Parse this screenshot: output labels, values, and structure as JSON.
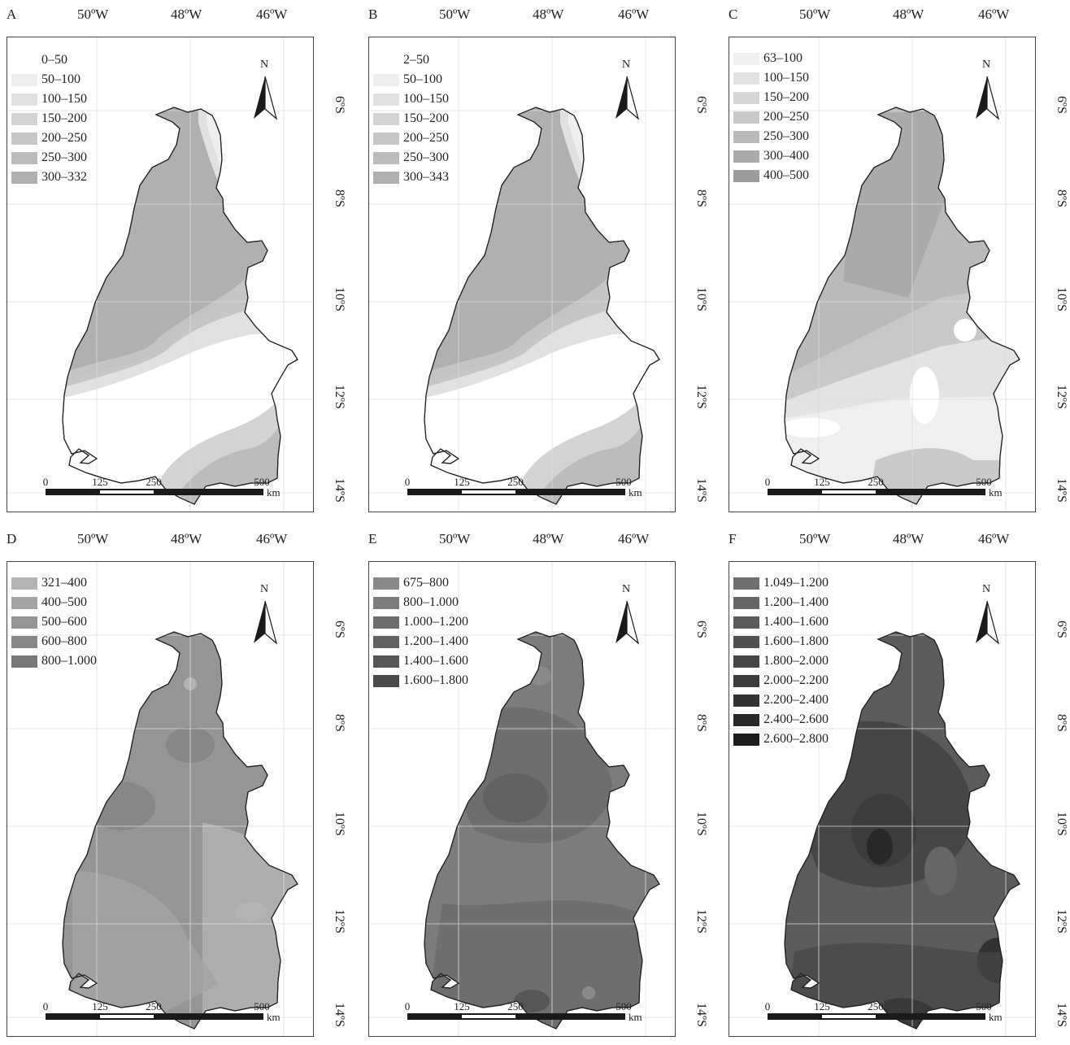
{
  "longitudes": [
    "50ºW",
    "48ºW",
    "46ºW"
  ],
  "latitudes": [
    "6ºS",
    "8ºS",
    "10ºS",
    "12ºS",
    "14ºS"
  ],
  "north_label": "N",
  "scale": {
    "ticks": [
      "0",
      "125",
      "250",
      "500"
    ],
    "unit": "km"
  },
  "panels": [
    {
      "letter": "A",
      "legend": [
        {
          "label": "0–50",
          "color": "#ffffff"
        },
        {
          "label": "50–100",
          "color": "#eeeeee"
        },
        {
          "label": "100–150",
          "color": "#e1e1e1"
        },
        {
          "label": "150–200",
          "color": "#d3d3d3"
        },
        {
          "label": "200–250",
          "color": "#c7c7c7"
        },
        {
          "label": "250–300",
          "color": "#bcbcbc"
        },
        {
          "label": "300–332",
          "color": "#b0b0b0"
        }
      ]
    },
    {
      "letter": "B",
      "legend": [
        {
          "label": "2–50",
          "color": "#ffffff"
        },
        {
          "label": "50–100",
          "color": "#eeeeee"
        },
        {
          "label": "100–150",
          "color": "#e1e1e1"
        },
        {
          "label": "150–200",
          "color": "#d3d3d3"
        },
        {
          "label": "200–250",
          "color": "#c7c7c7"
        },
        {
          "label": "250–300",
          "color": "#bcbcbc"
        },
        {
          "label": "300–343",
          "color": "#b0b0b0"
        }
      ]
    },
    {
      "letter": "C",
      "legend": [
        {
          "label": "63–100",
          "color": "#efefef"
        },
        {
          "label": "100–150",
          "color": "#e3e3e3"
        },
        {
          "label": "150–200",
          "color": "#d6d6d6"
        },
        {
          "label": "200–250",
          "color": "#c9c9c9"
        },
        {
          "label": "250–300",
          "color": "#bababa"
        },
        {
          "label": "300–400",
          "color": "#aaaaaa"
        },
        {
          "label": "400–500",
          "color": "#9b9b9b"
        }
      ]
    },
    {
      "letter": "D",
      "legend": [
        {
          "label": "321–400",
          "color": "#b3b3b3"
        },
        {
          "label": "400–500",
          "color": "#a4a4a4"
        },
        {
          "label": "500–600",
          "color": "#959595"
        },
        {
          "label": "600–800",
          "color": "#878787"
        },
        {
          "label": "800–1.000",
          "color": "#787878"
        }
      ]
    },
    {
      "letter": "E",
      "legend": [
        {
          "label": "675–800",
          "color": "#8a8a8a"
        },
        {
          "label": "800–1.000",
          "color": "#7c7c7c"
        },
        {
          "label": "1.000–1.200",
          "color": "#6e6e6e"
        },
        {
          "label": "1.200–1.400",
          "color": "#626262"
        },
        {
          "label": "1.400–1.600",
          "color": "#565656"
        },
        {
          "label": "1.600–1.800",
          "color": "#4a4a4a"
        }
      ]
    },
    {
      "letter": "F",
      "legend": [
        {
          "label": "1.049–1.200",
          "color": "#707070"
        },
        {
          "label": "1.200–1.400",
          "color": "#666666"
        },
        {
          "label": "1.400–1.600",
          "color": "#5b5b5b"
        },
        {
          "label": "1.600–1.800",
          "color": "#505050"
        },
        {
          "label": "1.800–2.000",
          "color": "#464646"
        },
        {
          "label": "2.000–2.200",
          "color": "#3c3c3c"
        },
        {
          "label": "2.200–2.400",
          "color": "#323232"
        },
        {
          "label": "2.400–2.600",
          "color": "#282828"
        },
        {
          "label": "2.600–2.800",
          "color": "#1c1c1c"
        }
      ]
    }
  ]
}
